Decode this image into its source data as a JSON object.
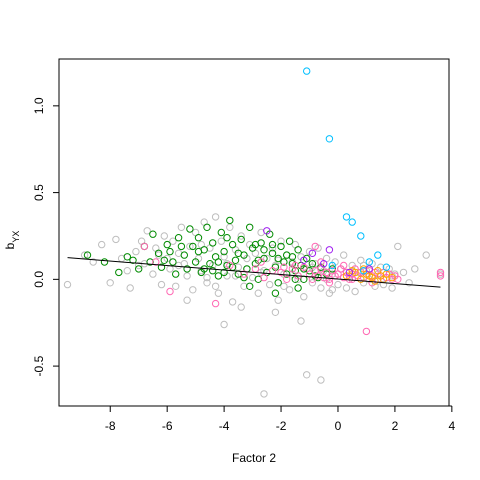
{
  "chart_data": {
    "type": "scatter",
    "title": "",
    "xlabel": "Factor 2",
    "ylabel_main": "b",
    "ylabel_sub": "YX",
    "xlim": [
      -9.8,
      3.9
    ],
    "ylim": [
      -0.73,
      1.27
    ],
    "x_ticks": [
      -8,
      -6,
      -4,
      -2,
      0,
      2,
      4
    ],
    "y_ticks": [
      -0.5,
      0.0,
      0.5,
      1.0
    ],
    "x_tick_labels": [
      "-8",
      "-6",
      "-4",
      "-2",
      "0",
      "2",
      "4"
    ],
    "y_tick_labels": [
      "-0.5",
      "0.0",
      "0.5",
      "1.0"
    ],
    "grid": false,
    "legend": "none",
    "regression_line": {
      "x": [
        -9.5,
        3.6
      ],
      "y": [
        0.125,
        -0.045
      ]
    },
    "series": [
      {
        "color": "#bebebe",
        "points": [
          [
            -9.5,
            -0.03
          ],
          [
            -8.9,
            0.14
          ],
          [
            -8.6,
            0.1
          ],
          [
            -8.3,
            0.2
          ],
          [
            -8.0,
            -0.02
          ],
          [
            -7.8,
            0.23
          ],
          [
            -7.6,
            0.12
          ],
          [
            -7.4,
            0.05
          ],
          [
            -7.3,
            -0.05
          ],
          [
            -7.1,
            0.16
          ],
          [
            -6.9,
            0.22
          ],
          [
            -6.8,
            0.09
          ],
          [
            -6.7,
            0.28
          ],
          [
            -6.5,
            0.03
          ],
          [
            -6.4,
            0.18
          ],
          [
            -6.2,
            -0.03
          ],
          [
            -6.1,
            0.25
          ],
          [
            -6.0,
            0.12
          ],
          [
            -5.9,
            0.06
          ],
          [
            -5.8,
            0.22
          ],
          [
            -5.7,
            -0.04
          ],
          [
            -5.6,
            0.15
          ],
          [
            -5.5,
            0.3
          ],
          [
            -5.4,
            0.09
          ],
          [
            -5.3,
            0.02
          ],
          [
            -5.2,
            0.19
          ],
          [
            -5.1,
            -0.06
          ],
          [
            -5.0,
            0.27
          ],
          [
            -4.9,
            0.12
          ],
          [
            -4.8,
            0.05
          ],
          [
            -4.7,
            0.33
          ],
          [
            -4.6,
            -0.02
          ],
          [
            -4.5,
            0.18
          ],
          [
            -4.4,
            0.08
          ],
          [
            -4.3,
            0.36
          ],
          [
            -4.2,
            -0.08
          ],
          [
            -4.1,
            0.22
          ],
          [
            -4.0,
            0.13
          ],
          [
            -3.9,
            0.02
          ],
          [
            -3.8,
            0.3
          ],
          [
            -3.7,
            -0.13
          ],
          [
            -3.6,
            0.17
          ],
          [
            -3.5,
            0.07
          ],
          [
            -3.4,
            0.25
          ],
          [
            -3.3,
            -0.04
          ],
          [
            -3.2,
            0.12
          ],
          [
            -3.1,
            0.2
          ],
          [
            -3.0,
            0.01
          ],
          [
            -2.9,
            0.15
          ],
          [
            -2.8,
            -0.08
          ],
          [
            -2.7,
            0.27
          ],
          [
            -2.6,
            0.05
          ],
          [
            -2.5,
            0.12
          ],
          [
            -2.4,
            -0.03
          ],
          [
            -2.3,
            0.18
          ],
          [
            -2.2,
            0.08
          ],
          [
            -2.1,
            -0.12
          ],
          [
            -2.0,
            0.22
          ],
          [
            -1.9,
            0.03
          ],
          [
            -1.8,
            0.14
          ],
          [
            -1.7,
            -0.06
          ],
          [
            -1.6,
            0.1
          ],
          [
            -1.5,
            0.2
          ],
          [
            -1.4,
            0.0
          ],
          [
            -1.3,
            0.13
          ],
          [
            -1.2,
            -0.1
          ],
          [
            -1.1,
            0.06
          ],
          [
            -1.0,
            0.16
          ],
          [
            -0.9,
            -0.02
          ],
          [
            -0.8,
            0.09
          ],
          [
            -0.7,
            0.18
          ],
          [
            -0.6,
            -0.05
          ],
          [
            -0.5,
            0.05
          ],
          [
            -0.4,
            0.12
          ],
          [
            -0.3,
            -0.08
          ],
          [
            -0.2,
            0.03
          ],
          [
            -0.1,
            0.1
          ],
          [
            0.0,
            -0.03
          ],
          [
            0.1,
            0.06
          ],
          [
            0.2,
            0.14
          ],
          [
            0.3,
            -0.05
          ],
          [
            0.4,
            0.02
          ],
          [
            0.5,
            0.08
          ],
          [
            0.6,
            -0.07
          ],
          [
            0.7,
            0.04
          ],
          [
            0.8,
            0.11
          ],
          [
            0.9,
            -0.02
          ],
          [
            1.0,
            0.05
          ],
          [
            1.1,
            0.0
          ],
          [
            1.2,
            0.09
          ],
          [
            1.3,
            -0.04
          ],
          [
            1.4,
            0.03
          ],
          [
            1.5,
            0.07
          ],
          [
            1.6,
            -0.03
          ],
          [
            1.7,
            0.01
          ],
          [
            1.8,
            0.06
          ],
          [
            1.9,
            -0.05
          ],
          [
            2.0,
            0.03
          ],
          [
            2.1,
            0.19
          ],
          [
            2.3,
            0.04
          ],
          [
            2.5,
            -0.02
          ],
          [
            2.7,
            0.06
          ],
          [
            3.1,
            0.14
          ],
          [
            3.6,
            0.03
          ],
          [
            -4.0,
            -0.26
          ],
          [
            -2.2,
            -0.19
          ],
          [
            -1.3,
            -0.24
          ],
          [
            -2.6,
            -0.66
          ],
          [
            -1.1,
            -0.55
          ],
          [
            -0.6,
            -0.58
          ],
          [
            -3.4,
            -0.16
          ],
          [
            -5.3,
            -0.12
          ],
          [
            -4.6,
            0.01
          ],
          [
            -3.9,
            0.09
          ],
          [
            -2.7,
            0.04
          ],
          [
            -1.6,
            0.03
          ],
          [
            -0.4,
            0.0
          ],
          [
            0.7,
            0.02
          ],
          [
            1.6,
            0.0
          ],
          [
            -6.3,
            0.14
          ],
          [
            -5.6,
            0.08
          ],
          [
            -4.8,
            0.2
          ],
          [
            -3.2,
            0.06
          ],
          [
            -2.1,
            0.11
          ],
          [
            -0.9,
            0.07
          ],
          [
            0.3,
            0.04
          ],
          [
            1.4,
            -0.01
          ],
          [
            -7.0,
            0.08
          ],
          [
            -4.3,
            -0.04
          ],
          [
            -3.6,
            0.02
          ],
          [
            -1.9,
            -0.04
          ],
          [
            -0.2,
            -0.06
          ],
          [
            0.9,
            0.08
          ],
          [
            1.9,
            0.02
          ]
        ]
      },
      {
        "color": "#008b00",
        "points": [
          [
            -8.8,
            0.14
          ],
          [
            -8.2,
            0.1
          ],
          [
            -7.7,
            0.04
          ],
          [
            -7.4,
            0.13
          ],
          [
            -7.0,
            0.06
          ],
          [
            -6.8,
            0.19
          ],
          [
            -6.6,
            0.1
          ],
          [
            -6.5,
            0.26
          ],
          [
            -6.3,
            0.15
          ],
          [
            -6.2,
            0.07
          ],
          [
            -6.0,
            0.2
          ],
          [
            -5.8,
            0.1
          ],
          [
            -5.7,
            0.03
          ],
          [
            -5.6,
            0.24
          ],
          [
            -5.4,
            0.14
          ],
          [
            -5.3,
            0.06
          ],
          [
            -5.2,
            0.29
          ],
          [
            -5.1,
            0.19
          ],
          [
            -5.0,
            0.1
          ],
          [
            -4.9,
            0.24
          ],
          [
            -4.8,
            0.04
          ],
          [
            -4.7,
            0.17
          ],
          [
            -4.6,
            0.3
          ],
          [
            -4.5,
            0.09
          ],
          [
            -4.4,
            0.21
          ],
          [
            -4.3,
            0.13
          ],
          [
            -4.2,
            0.02
          ],
          [
            -4.1,
            0.27
          ],
          [
            -4.0,
            0.16
          ],
          [
            -3.9,
            0.08
          ],
          [
            -3.8,
            0.34
          ],
          [
            -3.7,
            0.2
          ],
          [
            -3.6,
            0.11
          ],
          [
            -3.5,
            0.03
          ],
          [
            -3.4,
            0.23
          ],
          [
            -3.3,
            0.14
          ],
          [
            -3.2,
            0.06
          ],
          [
            -3.1,
            0.3
          ],
          [
            -3.0,
            0.18
          ],
          [
            -2.9,
            0.09
          ],
          [
            -2.8,
            0.0
          ],
          [
            -2.7,
            0.21
          ],
          [
            -2.6,
            0.12
          ],
          [
            -2.5,
            0.04
          ],
          [
            -2.4,
            0.26
          ],
          [
            -2.3,
            0.15
          ],
          [
            -2.2,
            0.07
          ],
          [
            -2.1,
            -0.02
          ],
          [
            -2.0,
            0.19
          ],
          [
            -1.9,
            0.1
          ],
          [
            -1.8,
            0.03
          ],
          [
            -1.7,
            0.22
          ],
          [
            -1.6,
            0.13
          ],
          [
            -1.5,
            0.05
          ],
          [
            -1.4,
            0.17
          ],
          [
            -1.3,
            0.08
          ],
          [
            -1.2,
            0.0
          ],
          [
            -1.1,
            0.12
          ],
          [
            -1.0,
            0.05
          ],
          [
            -0.9,
            0.09
          ],
          [
            -0.8,
            0.02
          ],
          [
            -0.6,
            0.07
          ],
          [
            -0.4,
            0.03
          ],
          [
            -0.2,
            0.06
          ],
          [
            -4.9,
            0.16
          ],
          [
            -4.4,
            0.05
          ],
          [
            -3.9,
            0.24
          ],
          [
            -3.3,
            0.01
          ],
          [
            -2.8,
            0.11
          ],
          [
            -2.3,
            0.2
          ],
          [
            -1.8,
            0.14
          ],
          [
            -5.5,
            0.19
          ],
          [
            -6.1,
            0.11
          ],
          [
            -4.2,
            0.1
          ],
          [
            -3.7,
            0.07
          ],
          [
            -2.6,
            0.17
          ],
          [
            -1.5,
            0.0
          ],
          [
            -2.2,
            -0.08
          ],
          [
            -1.4,
            -0.05
          ],
          [
            -3.5,
            0.15
          ],
          [
            -4.7,
            0.06
          ],
          [
            -5.9,
            0.16
          ],
          [
            -7.2,
            0.11
          ],
          [
            -4.0,
            0.04
          ],
          [
            -2.9,
            0.2
          ],
          [
            -2.1,
            0.12
          ],
          [
            -1.2,
            0.06
          ],
          [
            -0.7,
            0.01
          ],
          [
            -3.1,
            -0.04
          ],
          [
            -1.6,
            0.09
          ]
        ]
      },
      {
        "color": "#ff69b4",
        "points": [
          [
            -6.8,
            0.19
          ],
          [
            -6.4,
            0.1
          ],
          [
            -5.9,
            -0.07
          ],
          [
            -4.3,
            -0.14
          ],
          [
            -3.8,
            0.08
          ],
          [
            -3.3,
            0.03
          ],
          [
            -2.9,
            0.06
          ],
          [
            -2.6,
            0.01
          ],
          [
            -2.3,
            0.05
          ],
          [
            -2.0,
            0.04
          ],
          [
            -1.8,
            0.0
          ],
          [
            -1.6,
            0.06
          ],
          [
            -1.4,
            0.02
          ],
          [
            -1.2,
            0.07
          ],
          [
            -1.0,
            0.03
          ],
          [
            -0.9,
            0.0
          ],
          [
            -0.8,
            0.05
          ],
          [
            -0.7,
            0.02
          ],
          [
            -0.6,
            0.06
          ],
          [
            -0.5,
            0.01
          ],
          [
            -0.4,
            0.04
          ],
          [
            -0.3,
            0.0
          ],
          [
            -0.2,
            0.05
          ],
          [
            -0.1,
            0.02
          ],
          [
            0.0,
            0.03
          ],
          [
            0.1,
            0.06
          ],
          [
            0.2,
            0.01
          ],
          [
            0.3,
            0.04
          ],
          [
            0.4,
            0.0
          ],
          [
            0.5,
            0.03
          ],
          [
            0.6,
            0.06
          ],
          [
            0.7,
            0.02
          ],
          [
            0.8,
            0.04
          ],
          [
            0.9,
            0.01
          ],
          [
            1.0,
            0.03
          ],
          [
            1.1,
            0.05
          ],
          [
            1.2,
            0.02
          ],
          [
            1.3,
            0.04
          ],
          [
            1.4,
            0.0
          ],
          [
            1.5,
            0.02
          ],
          [
            1.6,
            0.04
          ],
          [
            1.7,
            0.01
          ],
          [
            1.8,
            0.03
          ],
          [
            1.9,
            0.0
          ],
          [
            2.0,
            0.02
          ],
          [
            2.1,
            0.0
          ],
          [
            1.0,
            -0.3
          ],
          [
            3.6,
            0.04
          ],
          [
            3.6,
            0.02
          ],
          [
            -0.8,
            0.19
          ],
          [
            -1.5,
            0.08
          ],
          [
            -0.6,
            0.1
          ],
          [
            0.2,
            0.08
          ],
          [
            -0.3,
            -0.02
          ],
          [
            0.5,
            0.0
          ],
          [
            1.2,
            -0.02
          ],
          [
            -2.7,
            0.1
          ],
          [
            -1.9,
            0.07
          ]
        ]
      },
      {
        "color": "#ffa500",
        "points": [
          [
            0.3,
            0.02
          ],
          [
            0.6,
            0.04
          ],
          [
            0.8,
            0.0
          ],
          [
            1.0,
            0.03
          ],
          [
            1.2,
            0.01
          ],
          [
            1.4,
            0.05
          ],
          [
            1.5,
            0.02
          ],
          [
            1.7,
            0.03
          ],
          [
            1.9,
            0.01
          ],
          [
            0.9,
            0.06
          ],
          [
            1.3,
            -0.01
          ],
          [
            1.6,
            0.0
          ],
          [
            0.5,
            0.05
          ],
          [
            1.1,
            0.02
          ]
        ]
      },
      {
        "color": "#00bfff",
        "points": [
          [
            -1.1,
            1.2
          ],
          [
            -0.3,
            0.81
          ],
          [
            0.3,
            0.36
          ],
          [
            0.5,
            0.33
          ],
          [
            0.8,
            0.25
          ],
          [
            1.4,
            0.14
          ],
          [
            1.1,
            0.1
          ],
          [
            0.9,
            0.05
          ],
          [
            -0.2,
            0.08
          ],
          [
            1.7,
            0.07
          ]
        ]
      },
      {
        "color": "#a020f0",
        "points": [
          [
            -2.5,
            0.28
          ],
          [
            -1.2,
            0.11
          ],
          [
            -0.3,
            0.17
          ],
          [
            -0.5,
            0.09
          ],
          [
            0.4,
            0.04
          ],
          [
            -0.9,
            0.15
          ],
          [
            1.1,
            0.06
          ]
        ]
      }
    ]
  }
}
